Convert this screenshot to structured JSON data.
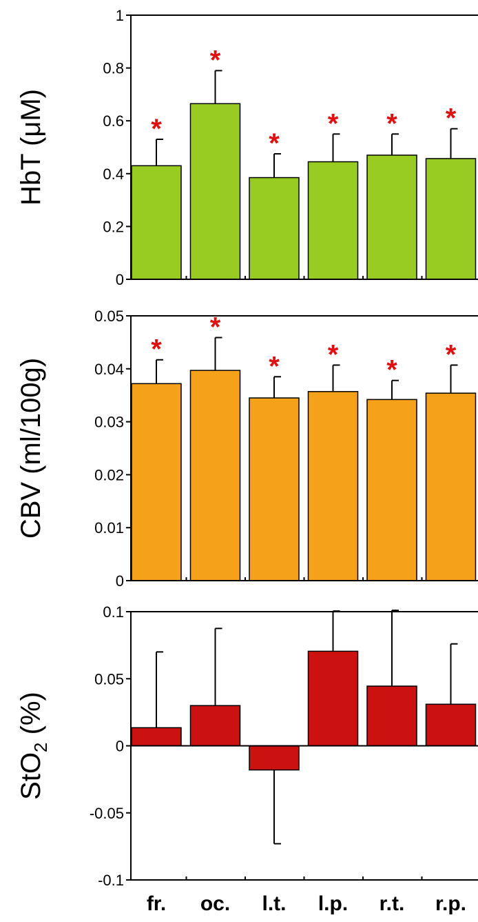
{
  "chart_data": [
    {
      "type": "bar",
      "ylabel": "HbT (μM)",
      "ylim": [
        0,
        1
      ],
      "yticks": [
        0,
        0.2,
        0.4,
        0.6,
        0.8,
        1
      ],
      "ytick_labels": [
        "0",
        "0.2",
        "0.4",
        "0.6",
        "0.8",
        "1"
      ],
      "categories": [
        "fr.",
        "oc.",
        "l.t.",
        "l.p.",
        "r.t.",
        "r.p."
      ],
      "values": [
        0.43,
        0.665,
        0.385,
        0.445,
        0.47,
        0.457
      ],
      "errors": [
        0.1,
        0.125,
        0.09,
        0.105,
        0.08,
        0.113
      ],
      "significance": [
        "*",
        "*",
        "*",
        "*",
        "*",
        "*"
      ],
      "bar_color": "#99cc22",
      "star_color": "#dd1111"
    },
    {
      "type": "bar",
      "ylabel": "CBV (ml/100g)",
      "ylim": [
        0,
        0.05
      ],
      "yticks": [
        0,
        0.01,
        0.02,
        0.03,
        0.04,
        0.05
      ],
      "ytick_labels": [
        "0",
        "0.01",
        "0.02",
        "0.03",
        "0.04",
        "0.05"
      ],
      "categories": [
        "fr.",
        "oc.",
        "l.t.",
        "l.p.",
        "r.t.",
        "r.p."
      ],
      "values": [
        0.0372,
        0.0397,
        0.0345,
        0.0357,
        0.0342,
        0.0354
      ],
      "errors": [
        0.0045,
        0.0062,
        0.004,
        0.005,
        0.0036,
        0.0053
      ],
      "significance": [
        "*",
        "*",
        "*",
        "*",
        "*",
        "*"
      ],
      "bar_color": "#f5a11a",
      "star_color": "#dd1111"
    },
    {
      "type": "bar",
      "ylabel": "StO",
      "ylabel_subscript": "2",
      "ylabel_suffix": " (%)",
      "ylim": [
        -0.1,
        0.1
      ],
      "yticks": [
        -0.1,
        -0.05,
        0,
        0.05,
        0.1
      ],
      "ytick_labels": [
        "-0.1",
        "-0.05",
        "0",
        "0.05",
        "0.1"
      ],
      "categories": [
        "fr.",
        "oc.",
        "l.t.",
        "l.p.",
        "r.t.",
        "r.p."
      ],
      "values": [
        0.0135,
        0.03,
        -0.018,
        0.0705,
        0.0445,
        0.031
      ],
      "errors": [
        0.0565,
        0.0575,
        0.055,
        0.03,
        0.0565,
        0.045
      ],
      "bar_color": "#cc1111"
    }
  ]
}
